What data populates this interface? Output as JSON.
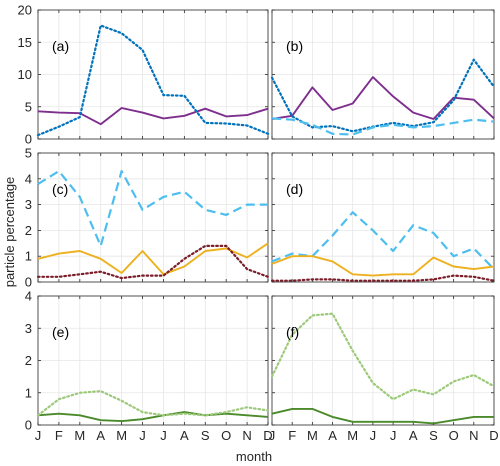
{
  "chart_data": {
    "type": "line",
    "xlabel": "month",
    "ylabel": "particle percentage",
    "months": [
      "J",
      "F",
      "M",
      "A",
      "M",
      "J",
      "J",
      "A",
      "S",
      "O",
      "N",
      "D"
    ],
    "grid": true,
    "panels": [
      {
        "label": "(a)",
        "ylim": [
          0,
          20
        ],
        "yticks": [
          0,
          5,
          10,
          15,
          20
        ],
        "series": [
          {
            "style": "solid",
            "color": "#7e2f8e",
            "values": [
              4.3,
              4.1,
              4.0,
              2.3,
              4.8,
              4.1,
              3.2,
              3.6,
              4.7,
              3.5,
              3.7,
              4.7
            ]
          },
          {
            "style": "dotted",
            "color": "#0072bd",
            "values": [
              0.6,
              1.9,
              3.4,
              17.6,
              16.4,
              13.8,
              6.8,
              6.7,
              2.5,
              2.4,
              2.1,
              0.8
            ]
          }
        ]
      },
      {
        "label": "(b)",
        "ylim": [
          0,
          20
        ],
        "yticks": [
          0,
          5,
          10,
          15,
          20
        ],
        "series": [
          {
            "style": "solid",
            "color": "#7e2f8e",
            "values": [
              3.1,
              3.6,
              8.0,
              4.5,
              5.5,
              9.6,
              6.6,
              4.1,
              3.1,
              6.4,
              6.1,
              3.2
            ]
          },
          {
            "style": "dotted",
            "color": "#0072bd",
            "values": [
              9.5,
              3.5,
              1.8,
              2.0,
              1.2,
              1.9,
              2.5,
              2.0,
              2.6,
              6.0,
              12.3,
              8.1
            ]
          },
          {
            "style": "dashed",
            "color": "#4dbeee",
            "values": [
              3.2,
              3.0,
              2.2,
              0.8,
              0.7,
              1.8,
              2.2,
              1.8,
              2.0,
              2.5,
              3.0,
              2.7
            ]
          }
        ]
      },
      {
        "label": "(c)",
        "ylim": [
          0,
          5
        ],
        "yticks": [
          0,
          1,
          2,
          3,
          4,
          5
        ],
        "series": [
          {
            "style": "dashed",
            "color": "#4dbeee",
            "values": [
              3.8,
              4.3,
              3.3,
              1.4,
              4.3,
              2.8,
              3.3,
              3.5,
              2.8,
              2.6,
              3.0,
              3.0
            ]
          },
          {
            "style": "solid",
            "color": "#edb120",
            "values": [
              0.9,
              1.1,
              1.2,
              0.9,
              0.35,
              1.2,
              0.3,
              0.6,
              1.2,
              1.3,
              0.95,
              1.5
            ]
          },
          {
            "style": "dotted",
            "color": "#7b1e2a",
            "values": [
              0.2,
              0.2,
              0.3,
              0.4,
              0.15,
              0.25,
              0.25,
              0.9,
              1.4,
              1.4,
              0.5,
              0.2
            ]
          }
        ]
      },
      {
        "label": "(d)",
        "ylim": [
          0,
          5
        ],
        "yticks": [
          0,
          1,
          2,
          3,
          4,
          5
        ],
        "series": [
          {
            "style": "dashed",
            "color": "#4dbeee",
            "values": [
              0.8,
              1.1,
              1.0,
              1.8,
              2.7,
              2.0,
              1.2,
              2.2,
              1.9,
              1.0,
              1.3,
              0.5
            ]
          },
          {
            "style": "solid",
            "color": "#edb120",
            "values": [
              0.7,
              1.0,
              1.0,
              0.8,
              0.3,
              0.25,
              0.3,
              0.3,
              0.95,
              0.6,
              0.5,
              0.6
            ]
          },
          {
            "style": "dotted",
            "color": "#7b1e2a",
            "values": [
              0.05,
              0.05,
              0.1,
              0.1,
              0.05,
              0.05,
              0.05,
              0.05,
              0.1,
              0.25,
              0.2,
              0.05
            ]
          }
        ]
      },
      {
        "label": "(e)",
        "ylim": [
          0,
          4
        ],
        "yticks": [
          0,
          1,
          2,
          3,
          4
        ],
        "series": [
          {
            "style": "solid",
            "color": "#4a8a2a",
            "values": [
              0.3,
              0.35,
              0.3,
              0.15,
              0.12,
              0.18,
              0.3,
              0.4,
              0.3,
              0.35,
              0.3,
              0.25
            ]
          },
          {
            "style": "dotted",
            "color": "#9cc97a",
            "values": [
              0.3,
              0.8,
              1.0,
              1.05,
              0.75,
              0.4,
              0.3,
              0.35,
              0.3,
              0.4,
              0.55,
              0.45
            ]
          }
        ]
      },
      {
        "label": "(f)",
        "ylim": [
          0,
          4
        ],
        "yticks": [
          0,
          1,
          2,
          3,
          4
        ],
        "series": [
          {
            "style": "solid",
            "color": "#4a8a2a",
            "values": [
              0.35,
              0.5,
              0.5,
              0.25,
              0.1,
              0.1,
              0.1,
              0.1,
              0.05,
              0.15,
              0.25,
              0.25
            ]
          },
          {
            "style": "dotted",
            "color": "#9cc97a",
            "values": [
              1.5,
              2.8,
              3.4,
              3.45,
              2.3,
              1.3,
              0.8,
              1.1,
              0.95,
              1.35,
              1.55,
              1.2
            ]
          }
        ]
      }
    ]
  }
}
